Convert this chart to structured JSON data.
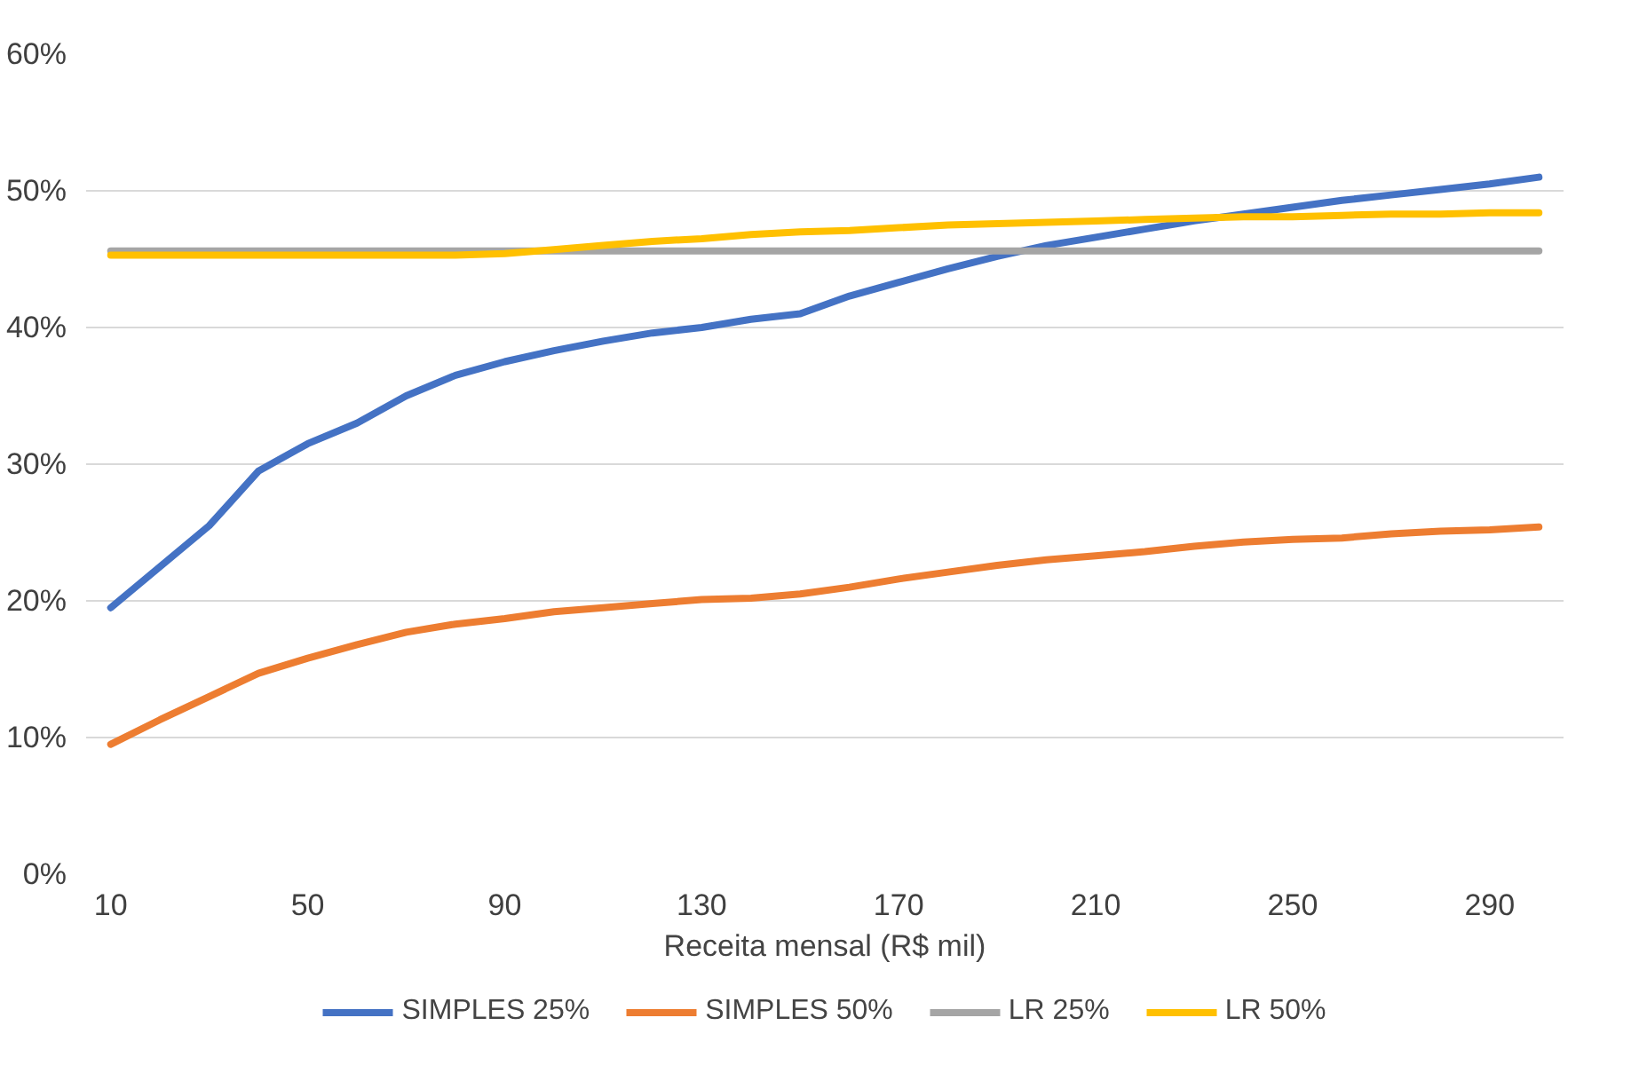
{
  "chart_data": {
    "type": "line",
    "xlabel": "Receita mensal (R$ mil)",
    "x": [
      10,
      20,
      30,
      40,
      50,
      60,
      70,
      80,
      90,
      100,
      110,
      120,
      130,
      140,
      150,
      160,
      170,
      180,
      190,
      200,
      210,
      220,
      230,
      240,
      250,
      260,
      270,
      280,
      290,
      300
    ],
    "xlim": [
      5,
      305
    ],
    "xticks": [
      10,
      50,
      90,
      130,
      170,
      210,
      250,
      290
    ],
    "ylim": [
      0,
      60
    ],
    "yticks": [
      {
        "value": 0,
        "label": "0%"
      },
      {
        "value": 10,
        "label": "10%"
      },
      {
        "value": 20,
        "label": "20%"
      },
      {
        "value": 30,
        "label": "30%"
      },
      {
        "value": 40,
        "label": "40%"
      },
      {
        "value": 50,
        "label": "50%"
      },
      {
        "value": 60,
        "label": "60%"
      }
    ],
    "grid": "y",
    "legend": "bottom",
    "marker": "none",
    "line_style": "solid",
    "series": [
      {
        "name": "SIMPLES 25%",
        "color": "#4472c4",
        "values": [
          19.5,
          22.5,
          25.5,
          29.5,
          31.5,
          33,
          35,
          36.5,
          37.5,
          38.3,
          39,
          39.6,
          40,
          40.6,
          41,
          42.3,
          43.3,
          44.3,
          45.2,
          46,
          46.6,
          47.2,
          47.8,
          48.3,
          48.8,
          49.3,
          49.7,
          50.1,
          50.5,
          51
        ]
      },
      {
        "name": "SIMPLES 50%",
        "color": "#ed7d31",
        "values": [
          9.5,
          11.3,
          13,
          14.7,
          15.8,
          16.8,
          17.7,
          18.3,
          18.7,
          19.2,
          19.5,
          19.8,
          20.1,
          20.2,
          20.5,
          21,
          21.6,
          22.1,
          22.6,
          23,
          23.3,
          23.6,
          24,
          24.3,
          24.5,
          24.6,
          24.9,
          25.1,
          25.2,
          25.4
        ]
      },
      {
        "name": "LR 25%",
        "color": "#a5a5a5",
        "values": [
          45.6,
          45.6,
          45.6,
          45.6,
          45.6,
          45.6,
          45.6,
          45.6,
          45.6,
          45.6,
          45.6,
          45.6,
          45.6,
          45.6,
          45.6,
          45.6,
          45.6,
          45.6,
          45.6,
          45.6,
          45.6,
          45.6,
          45.6,
          45.6,
          45.6,
          45.6,
          45.6,
          45.6,
          45.6,
          45.6
        ]
      },
      {
        "name": "LR 50%",
        "color": "#ffc000",
        "values": [
          45.3,
          45.3,
          45.3,
          45.3,
          45.3,
          45.3,
          45.3,
          45.3,
          45.4,
          45.7,
          46,
          46.3,
          46.5,
          46.8,
          47,
          47.1,
          47.3,
          47.5,
          47.6,
          47.7,
          47.8,
          47.9,
          48,
          48.1,
          48.1,
          48.2,
          48.3,
          48.3,
          48.4,
          48.4
        ]
      }
    ]
  }
}
